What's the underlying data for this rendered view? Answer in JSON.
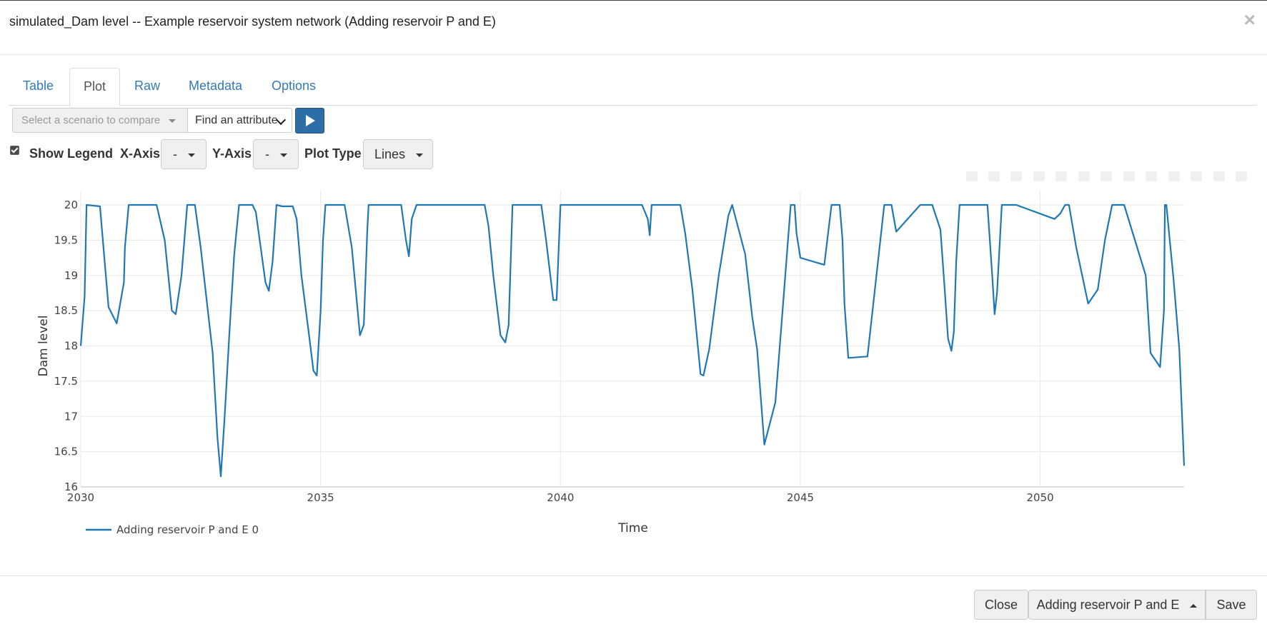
{
  "window": {
    "title": "simulated_Dam level -- Example reservoir system network (Adding reservoir P and E)",
    "close_icon": "×"
  },
  "tabs": [
    {
      "label": "Table",
      "active": false
    },
    {
      "label": "Plot",
      "active": true
    },
    {
      "label": "Raw",
      "active": false
    },
    {
      "label": "Metadata",
      "active": false
    },
    {
      "label": "Options",
      "active": false
    }
  ],
  "toolbar": {
    "scenario_placeholder": "Select a scenario to compare",
    "attribute_label": "Find an attribute",
    "play_icon": "play-icon"
  },
  "controls": {
    "show_legend_label": "Show Legend",
    "show_legend_checked": true,
    "xaxis_label": "X-Axis",
    "xaxis_value": "-",
    "yaxis_label": "Y-Axis",
    "yaxis_value": "-",
    "plot_type_label": "Plot Type",
    "plot_type_value": "Lines"
  },
  "footer": {
    "close_label": "Close",
    "scenario_label": "Adding reservoir P and E",
    "save_label": "Save"
  },
  "chart_data": {
    "type": "line",
    "title": "",
    "xlabel": "Time",
    "ylabel": "Dam level",
    "xlim": [
      2030,
      2053
    ],
    "ylim": [
      16,
      20
    ],
    "x_ticks": [
      "2030",
      "2035",
      "2040",
      "2045",
      "2050"
    ],
    "y_ticks": [
      "16",
      "16.5",
      "17",
      "17.5",
      "18",
      "18.5",
      "19",
      "19.5",
      "20"
    ],
    "grid": true,
    "legend": "bottom-left",
    "line_color": "#1f77b4",
    "series": [
      {
        "name": "Adding reservoir P and E 0",
        "x": [
          2030.0,
          2030.08,
          2030.12,
          2030.4,
          2030.58,
          2030.75,
          2030.9,
          2030.92,
          2031.0,
          2031.08,
          2031.2,
          2031.58,
          2031.75,
          2031.9,
          2031.98,
          2032.1,
          2032.22,
          2032.38,
          2032.5,
          2032.6,
          2032.75,
          2032.85,
          2032.92,
          2033.0,
          2033.1,
          2033.2,
          2033.3,
          2033.58,
          2033.65,
          2033.85,
          2033.92,
          2034.0,
          2034.08,
          2034.2,
          2034.42,
          2034.5,
          2034.6,
          2034.75,
          2034.85,
          2034.92,
          2035.0,
          2035.05,
          2035.1,
          2035.5,
          2035.65,
          2035.82,
          2035.9,
          2035.95,
          2035.97,
          2036.0,
          2036.68,
          2036.78,
          2036.84,
          2036.9,
          2037.0,
          2038.0,
          2038.42,
          2038.5,
          2038.6,
          2038.75,
          2038.85,
          2038.92,
          2039.0,
          2039.6,
          2039.7,
          2039.85,
          2039.92,
          2040.0,
          2041.7,
          2041.82,
          2041.86,
          2041.9,
          2042.0,
          2042.5,
          2042.6,
          2042.75,
          2042.92,
          2042.98,
          2043.1,
          2043.3,
          2043.5,
          2043.58,
          2043.85,
          2044.0,
          2044.1,
          2044.25,
          2044.48,
          2044.63,
          2044.8,
          2044.88,
          2044.92,
          2045.0,
          2045.5,
          2045.65,
          2045.82,
          2045.88,
          2045.92,
          2046.0,
          2046.4,
          2046.75,
          2046.82,
          2046.9,
          2047.0,
          2047.5,
          2047.6,
          2047.75,
          2047.92,
          2048.0,
          2048.08,
          2048.15,
          2048.2,
          2048.25,
          2048.32,
          2048.9,
          2049.0,
          2049.05,
          2049.1,
          2049.2,
          2049.4,
          2049.5,
          2050.3,
          2050.42,
          2050.52,
          2050.6,
          2050.75,
          2051.0,
          2051.2,
          2051.35,
          2051.5,
          2051.6,
          2051.75,
          2052.2,
          2052.3,
          2052.5,
          2052.58,
          2052.6,
          2052.63,
          2052.7,
          2052.78,
          2052.9,
          2053.0
        ],
        "y": [
          18.0,
          18.7,
          20.0,
          19.98,
          18.55,
          18.32,
          18.9,
          19.4,
          20.0,
          20.0,
          20.0,
          20.0,
          19.5,
          18.5,
          18.45,
          19.0,
          20.0,
          20.0,
          19.4,
          18.8,
          17.9,
          16.7,
          16.15,
          17.0,
          18.2,
          19.3,
          20.0,
          20.0,
          19.9,
          18.9,
          18.78,
          19.2,
          20.0,
          19.98,
          19.98,
          19.8,
          19.0,
          18.2,
          17.65,
          17.58,
          18.5,
          19.5,
          20.0,
          20.0,
          19.4,
          18.15,
          18.3,
          19.2,
          19.6,
          20.0,
          20.0,
          19.5,
          19.27,
          19.8,
          20.0,
          20.0,
          20.0,
          19.7,
          19.0,
          18.15,
          18.05,
          18.3,
          20.0,
          20.0,
          19.5,
          18.65,
          18.65,
          20.0,
          20.0,
          19.8,
          19.57,
          20.0,
          20.0,
          20.0,
          19.6,
          18.8,
          17.6,
          17.58,
          17.95,
          19.0,
          19.85,
          20.0,
          19.3,
          18.4,
          17.95,
          16.6,
          17.2,
          18.5,
          20.0,
          20.0,
          19.6,
          19.25,
          19.15,
          20.0,
          20.0,
          19.5,
          18.6,
          17.83,
          17.85,
          20.0,
          20.0,
          20.0,
          19.62,
          20.0,
          20.0,
          20.0,
          19.65,
          18.9,
          18.1,
          17.93,
          18.2,
          19.2,
          20.0,
          20.0,
          19.0,
          18.45,
          18.75,
          20.0,
          20.0,
          20.0,
          19.8,
          19.88,
          20.0,
          20.0,
          19.4,
          18.6,
          18.8,
          19.5,
          20.0,
          20.0,
          20.0,
          19.0,
          17.9,
          17.7,
          18.5,
          20.0,
          20.0,
          19.5,
          18.95,
          17.95,
          16.3
        ]
      }
    ]
  }
}
